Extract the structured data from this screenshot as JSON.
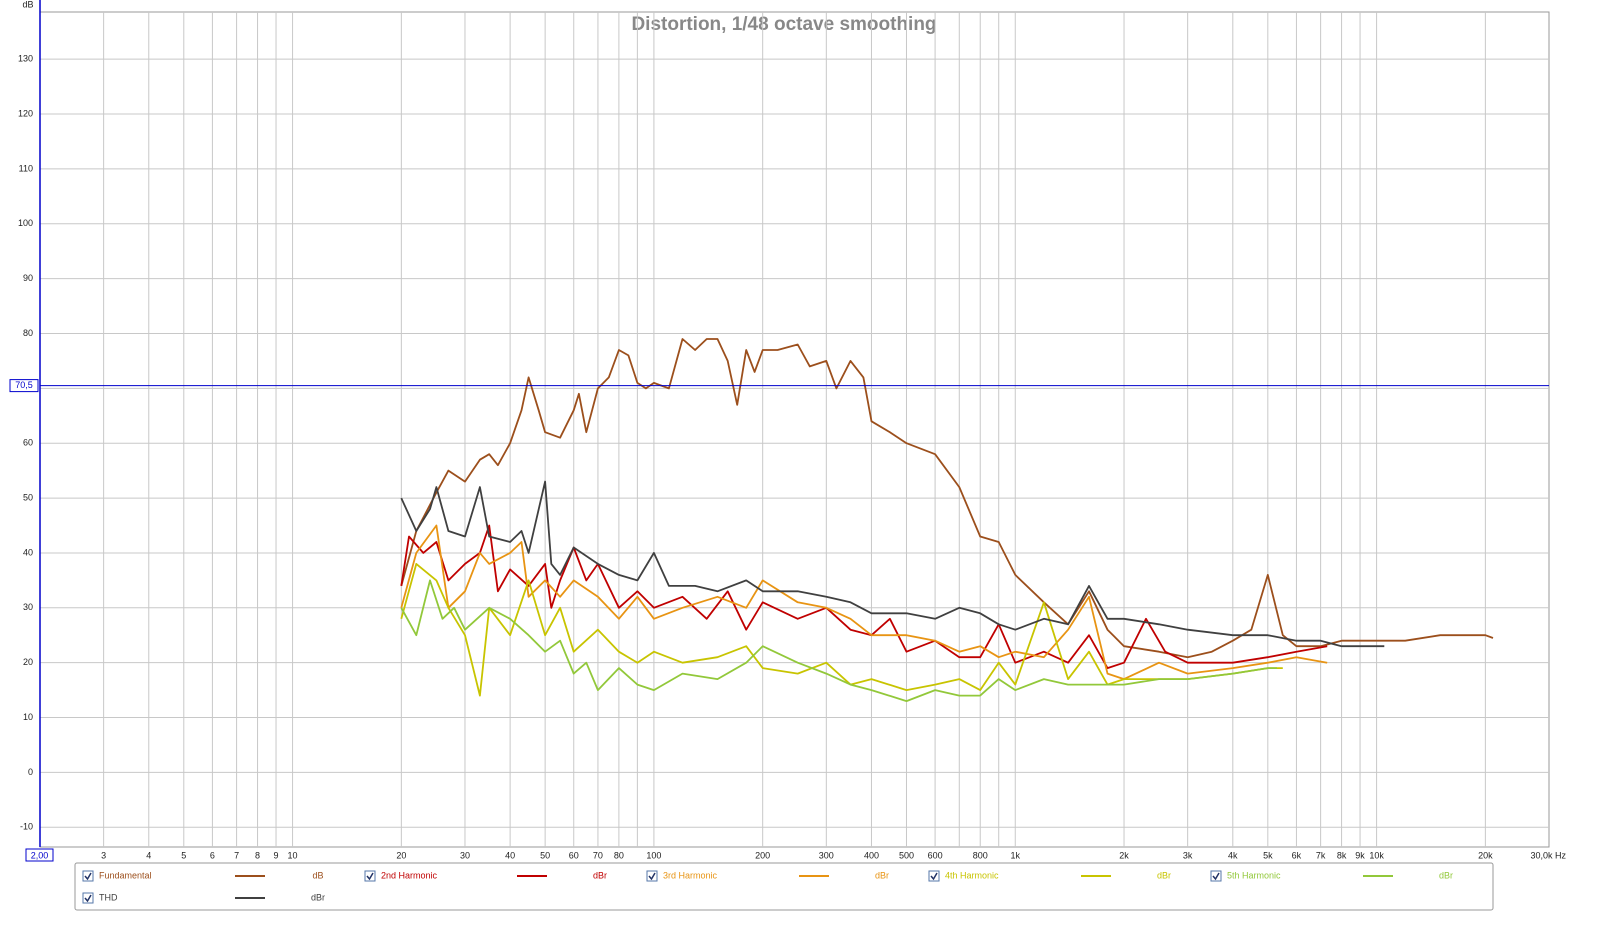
{
  "chart_data": {
    "type": "line",
    "title": "Distortion, 1/48 octave smoothing",
    "y_label": "dB",
    "xscale": "log",
    "grid": true,
    "xlim": [
      2,
      30000
    ],
    "xlim_labels": [
      "2,00",
      "30,0k Hz"
    ],
    "ylim": [
      -13.6,
      138.6
    ],
    "yticks": [
      -10,
      0,
      10,
      20,
      30,
      40,
      50,
      60,
      70,
      80,
      90,
      100,
      110,
      120,
      130
    ],
    "xticks": [
      3,
      4,
      5,
      6,
      7,
      8,
      9,
      10,
      20,
      30,
      40,
      50,
      60,
      70,
      80,
      100,
      200,
      300,
      400,
      500,
      600,
      800,
      {
        "value": 1000,
        "label": "1k"
      },
      {
        "value": 2000,
        "label": "2k"
      },
      {
        "value": 3000,
        "label": "3k"
      },
      {
        "value": 4000,
        "label": "4k"
      },
      {
        "value": 5000,
        "label": "5k"
      },
      {
        "value": 6000,
        "label": "6k"
      },
      {
        "value": 7000,
        "label": "7k"
      },
      {
        "value": 8000,
        "label": "8k"
      },
      {
        "value": 9000,
        "label": "9k"
      },
      {
        "value": 10000,
        "label": "10k"
      },
      {
        "value": 20000,
        "label": "20k"
      }
    ],
    "xgrid": [
      90,
      700,
      900
    ],
    "marker": {
      "value": 70.5,
      "label": "70,5",
      "color": "#0000cc"
    },
    "series": [
      {
        "name": "Fundamental",
        "unit": "dB",
        "color": "#9c4f1c",
        "x": [
          20,
          22,
          25,
          27,
          30,
          33,
          35,
          37,
          40,
          43,
          45,
          48,
          50,
          55,
          60,
          62,
          65,
          70,
          75,
          80,
          85,
          90,
          95,
          100,
          110,
          120,
          130,
          140,
          150,
          160,
          170,
          180,
          190,
          200,
          220,
          250,
          270,
          300,
          320,
          350,
          380,
          400,
          450,
          500,
          600,
          700,
          800,
          900,
          1000,
          1200,
          1400,
          1600,
          1800,
          2000,
          2500,
          3000,
          3500,
          4000,
          4500,
          5000,
          5500,
          6000,
          7000,
          8000,
          10000,
          12000,
          15000,
          20000,
          21000
        ],
        "values": [
          34,
          44,
          51,
          55,
          53,
          57,
          58,
          56,
          60,
          66,
          72,
          66,
          62,
          61,
          66,
          69,
          62,
          70,
          72,
          77,
          76,
          71,
          70,
          71,
          70,
          79,
          77,
          79,
          79,
          75,
          67,
          77,
          73,
          77,
          77,
          78,
          74,
          75,
          70,
          75,
          72,
          64,
          62,
          60,
          58,
          52,
          43,
          42,
          36,
          31,
          27,
          33,
          26,
          23,
          22,
          21,
          22,
          24,
          26,
          36,
          25,
          23,
          23,
          24,
          24,
          24,
          25,
          25,
          24.5
        ]
      },
      {
        "name": "2nd Harmonic",
        "unit": "dBr",
        "color": "#c00000",
        "x": [
          20,
          21,
          23,
          25,
          27,
          30,
          33,
          35,
          37,
          40,
          45,
          50,
          52,
          55,
          60,
          65,
          70,
          80,
          90,
          100,
          120,
          140,
          160,
          180,
          200,
          250,
          300,
          350,
          400,
          450,
          500,
          600,
          700,
          800,
          900,
          1000,
          1200,
          1400,
          1600,
          1800,
          2000,
          2300,
          2600,
          3000,
          3500,
          4000,
          5000,
          6000,
          7300
        ],
        "values": [
          34,
          43,
          40,
          42,
          35,
          38,
          40,
          45,
          33,
          37,
          34,
          38,
          30,
          35,
          41,
          35,
          38,
          30,
          33,
          30,
          32,
          28,
          33,
          26,
          31,
          28,
          30,
          26,
          25,
          28,
          22,
          24,
          21,
          21,
          27,
          20,
          22,
          20,
          25,
          19,
          20,
          28,
          22,
          20,
          20,
          20,
          21,
          22,
          23
        ]
      },
      {
        "name": "3rd Harmonic",
        "unit": "dBr",
        "color": "#e89413",
        "x": [
          20,
          22,
          25,
          27,
          30,
          33,
          35,
          40,
          43,
          45,
          50,
          55,
          60,
          70,
          80,
          90,
          100,
          120,
          150,
          180,
          200,
          250,
          300,
          350,
          400,
          500,
          600,
          700,
          800,
          900,
          1000,
          1200,
          1400,
          1600,
          1800,
          2000,
          2500,
          3000,
          4000,
          5000,
          6000,
          7300
        ],
        "values": [
          30,
          40,
          45,
          30,
          33,
          40,
          38,
          40,
          42,
          32,
          35,
          32,
          35,
          32,
          28,
          32,
          28,
          30,
          32,
          30,
          35,
          31,
          30,
          28,
          25,
          25,
          24,
          22,
          23,
          21,
          22,
          21,
          26,
          32,
          18,
          17,
          20,
          18,
          19,
          20,
          21,
          20
        ]
      },
      {
        "name": "4th Harmonic",
        "unit": "dBr",
        "color": "#c8c400",
        "x": [
          20,
          22,
          25,
          27,
          30,
          33,
          35,
          40,
          45,
          50,
          55,
          60,
          70,
          80,
          90,
          100,
          120,
          150,
          180,
          200,
          250,
          300,
          350,
          400,
          500,
          600,
          700,
          800,
          900,
          1000,
          1200,
          1400,
          1600,
          1800,
          2000,
          2500,
          3000,
          4000,
          5000,
          5500
        ],
        "values": [
          28,
          38,
          35,
          30,
          25,
          14,
          30,
          25,
          35,
          25,
          30,
          22,
          26,
          22,
          20,
          22,
          20,
          21,
          23,
          19,
          18,
          20,
          16,
          17,
          15,
          16,
          17,
          15,
          20,
          16,
          31,
          17,
          22,
          16,
          17,
          17,
          17,
          18,
          19,
          19
        ]
      },
      {
        "name": "5th Harmonic",
        "unit": "dBr",
        "color": "#92c83a",
        "x": [
          20,
          22,
          24,
          26,
          28,
          30,
          35,
          40,
          45,
          50,
          55,
          60,
          65,
          70,
          80,
          90,
          100,
          120,
          150,
          180,
          200,
          250,
          300,
          350,
          400,
          500,
          600,
          700,
          800,
          900,
          1000,
          1200,
          1400,
          1600,
          1800,
          2000,
          2500,
          3000,
          4000,
          5000,
          5300
        ],
        "values": [
          30,
          25,
          35,
          28,
          30,
          26,
          30,
          28,
          25,
          22,
          24,
          18,
          20,
          15,
          19,
          16,
          15,
          18,
          17,
          20,
          23,
          20,
          18,
          16,
          15,
          13,
          15,
          14,
          14,
          17,
          15,
          17,
          16,
          16,
          16,
          16,
          17,
          17,
          18,
          19,
          19
        ]
      },
      {
        "name": "THD",
        "unit": "dBr",
        "color": "#404040",
        "x": [
          20,
          22,
          24,
          25,
          27,
          30,
          33,
          35,
          40,
          43,
          45,
          50,
          52,
          55,
          60,
          70,
          80,
          90,
          100,
          110,
          130,
          150,
          180,
          200,
          250,
          300,
          350,
          400,
          500,
          600,
          700,
          800,
          900,
          1000,
          1200,
          1400,
          1600,
          1800,
          2000,
          2500,
          3000,
          4000,
          5000,
          6000,
          7000,
          8000,
          9000,
          10500
        ],
        "values": [
          50,
          44,
          48,
          52,
          44,
          43,
          52,
          43,
          42,
          44,
          40,
          53,
          38,
          36,
          41,
          38,
          36,
          35,
          40,
          34,
          34,
          33,
          35,
          33,
          33,
          32,
          31,
          29,
          29,
          28,
          30,
          29,
          27,
          26,
          28,
          27,
          34,
          28,
          28,
          27,
          26,
          25,
          25,
          24,
          24,
          23,
          23,
          23
        ]
      }
    ]
  }
}
